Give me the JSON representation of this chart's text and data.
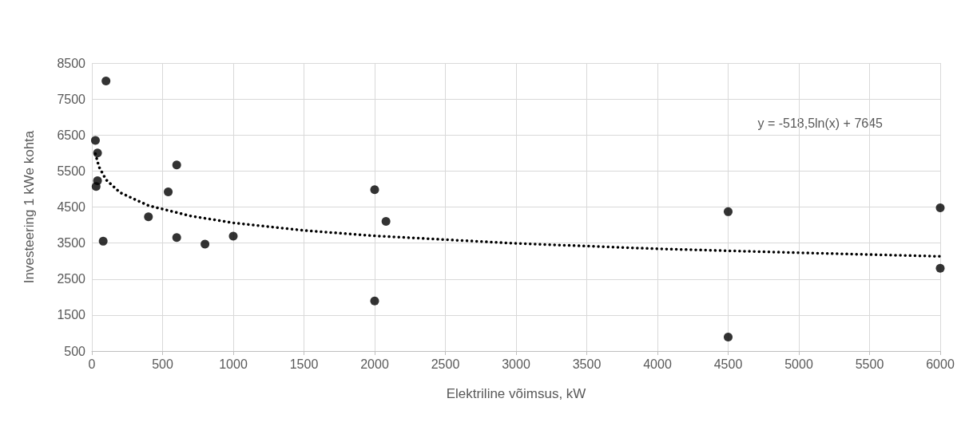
{
  "chart_data": {
    "type": "scatter",
    "xlabel": "Elektriline võimsus, kW",
    "ylabel": "Investeering 1 kWe kohta",
    "annotations": [
      "y = -518,5ln(x) + 7645"
    ],
    "xlim": [
      0,
      6000
    ],
    "xticks": [
      0,
      500,
      1000,
      1500,
      2000,
      2500,
      3000,
      3500,
      4000,
      4500,
      5000,
      5500,
      6000
    ],
    "ylim": [
      500,
      8500
    ],
    "yticks": [
      500,
      1500,
      2500,
      3500,
      4500,
      5500,
      6500,
      7500,
      8500
    ],
    "grid": true,
    "marker": "circle",
    "series": [
      {
        "color": "#000000",
        "x": [
          100,
          25,
          40,
          40,
          30,
          80,
          400,
          540,
          600,
          600,
          800,
          1000,
          2000,
          2080,
          2000,
          4500,
          6000,
          6000,
          4500
        ],
        "values": [
          8000,
          6350,
          6000,
          5230,
          5070,
          3550,
          4230,
          4920,
          5670,
          3650,
          3470,
          3690,
          4980,
          4100,
          1890,
          4370,
          4480,
          2800,
          890
        ]
      },
      {
        "type": "line",
        "color": "#000000",
        "marker": "none",
        "line_style": "dotted",
        "x": [
          25,
          50,
          100,
          200,
          400,
          700,
          1000,
          1500,
          2000,
          3000,
          4000,
          5000,
          6000
        ],
        "values": [
          5980,
          5620,
          5260,
          4900,
          4540,
          4250,
          4060,
          3850,
          3700,
          3490,
          3340,
          3230,
          3130
        ]
      }
    ]
  }
}
